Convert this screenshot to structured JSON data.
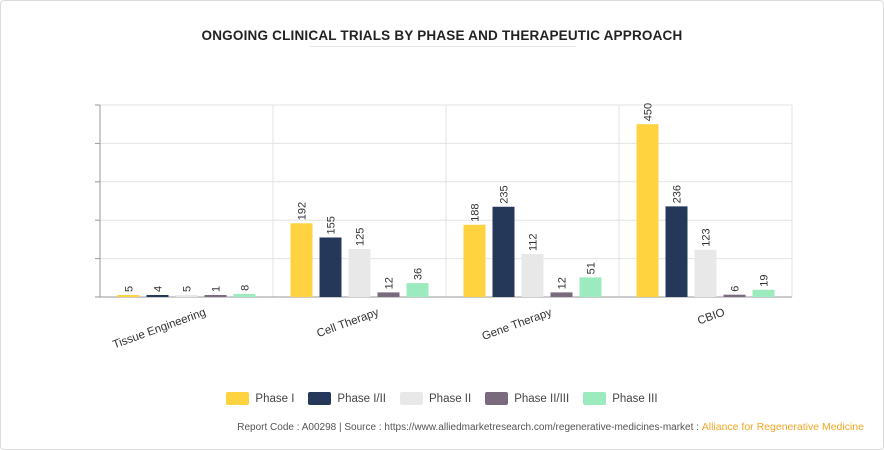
{
  "chart_data": {
    "type": "bar",
    "title": "ONGOING CLINICAL TRIALS BY PHASE AND THERAPEUTIC APPROACH",
    "xlabel": "",
    "ylabel": "",
    "ylim": [
      0,
      500
    ],
    "categories": [
      "Tissue Engineering",
      "Cell Therapy",
      "Gene Therapy",
      "CBIO"
    ],
    "series": [
      {
        "name": "Phase I",
        "color": "#FFD23F",
        "values": [
          5,
          192,
          188,
          450
        ]
      },
      {
        "name": "Phase I/II",
        "color": "#263859",
        "values": [
          4,
          155,
          235,
          236
        ]
      },
      {
        "name": "Phase II",
        "color": "#E8E8E8",
        "values": [
          5,
          125,
          112,
          123
        ]
      },
      {
        "name": "Phase II/III",
        "color": "#7A6A7D",
        "values": [
          1,
          12,
          12,
          6
        ]
      },
      {
        "name": "Phase III",
        "color": "#9CEBBE",
        "values": [
          8,
          36,
          51,
          19
        ]
      }
    ],
    "legend_position": "bottom"
  },
  "footer": {
    "text": "Report Code : A00298  |  Source : https://www.alliedmarketresearch.com/regenerative-medicines-market : ",
    "brand": "Alliance for Regenerative Medicine"
  }
}
